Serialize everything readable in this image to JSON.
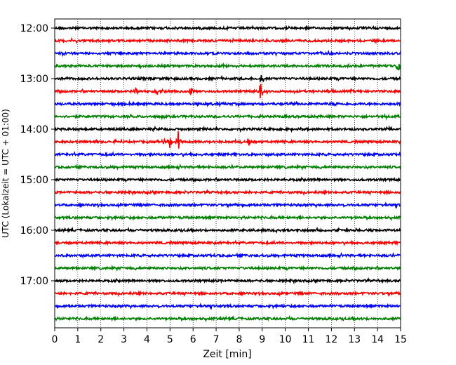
{
  "chart_data": {
    "type": "line",
    "subtype": "helicorder",
    "xlabel": "Zeit  [min]",
    "ylabel": "UTC (Lokalzeit = UTC + 01:00)",
    "xlim": [
      0,
      15
    ],
    "x_ticks": [
      0,
      1,
      2,
      3,
      4,
      5,
      6,
      7,
      8,
      9,
      10,
      11,
      12,
      13,
      14,
      15
    ],
    "x_gridlines": "dotted vertical at every minute",
    "minutes_per_trace": 15,
    "trace_colors_cycle": [
      "#000000",
      "#ff0000",
      "#0000ff",
      "#008000"
    ],
    "y_ticks": [
      {
        "label": "12:00",
        "trace_index": 0
      },
      {
        "label": "13:00",
        "trace_index": 4
      },
      {
        "label": "14:00",
        "trace_index": 8
      },
      {
        "label": "15:00",
        "trace_index": 12
      },
      {
        "label": "16:00",
        "trace_index": 16
      },
      {
        "label": "17:00",
        "trace_index": 20
      }
    ],
    "traces": [
      {
        "start": "12:00",
        "color": "#000000"
      },
      {
        "start": "12:15",
        "color": "#ff0000"
      },
      {
        "start": "12:30",
        "color": "#0000ff"
      },
      {
        "start": "12:45",
        "color": "#008000"
      },
      {
        "start": "13:00",
        "color": "#000000"
      },
      {
        "start": "13:15",
        "color": "#ff0000"
      },
      {
        "start": "13:30",
        "color": "#0000ff"
      },
      {
        "start": "13:45",
        "color": "#008000"
      },
      {
        "start": "14:00",
        "color": "#000000"
      },
      {
        "start": "14:15",
        "color": "#ff0000"
      },
      {
        "start": "14:30",
        "color": "#0000ff"
      },
      {
        "start": "14:45",
        "color": "#008000"
      },
      {
        "start": "15:00",
        "color": "#000000"
      },
      {
        "start": "15:15",
        "color": "#ff0000"
      },
      {
        "start": "15:30",
        "color": "#0000ff"
      },
      {
        "start": "15:45",
        "color": "#008000"
      },
      {
        "start": "16:00",
        "color": "#000000"
      },
      {
        "start": "16:15",
        "color": "#ff0000"
      },
      {
        "start": "16:30",
        "color": "#0000ff"
      },
      {
        "start": "16:45",
        "color": "#008000"
      },
      {
        "start": "17:00",
        "color": "#000000"
      },
      {
        "start": "17:15",
        "color": "#ff0000"
      },
      {
        "start": "17:30",
        "color": "#0000ff"
      },
      {
        "start": "17:45",
        "color": "#008000"
      }
    ],
    "events": [
      {
        "trace_index": 5,
        "minute": 3.55,
        "amplitude": 0.35
      },
      {
        "trace_index": 5,
        "minute": 4.45,
        "amplitude": 0.25
      },
      {
        "trace_index": 5,
        "minute": 5.4,
        "amplitude": 0.2
      },
      {
        "trace_index": 5,
        "minute": 5.9,
        "amplitude": 0.3
      },
      {
        "trace_index": 5,
        "minute": 8.95,
        "amplitude": 1.0
      },
      {
        "trace_index": 9,
        "minute": 4.5,
        "amplitude": 0.2
      },
      {
        "trace_index": 9,
        "minute": 4.7,
        "amplitude": 0.2
      },
      {
        "trace_index": 9,
        "minute": 5.0,
        "amplitude": 0.6
      },
      {
        "trace_index": 9,
        "minute": 5.35,
        "amplitude": 1.0
      },
      {
        "trace_index": 9,
        "minute": 8.4,
        "amplitude": 0.3
      },
      {
        "trace_index": 3,
        "minute": 14.9,
        "amplitude": 0.6
      },
      {
        "trace_index": 4,
        "minute": 9.0,
        "amplitude": 0.6
      }
    ]
  }
}
